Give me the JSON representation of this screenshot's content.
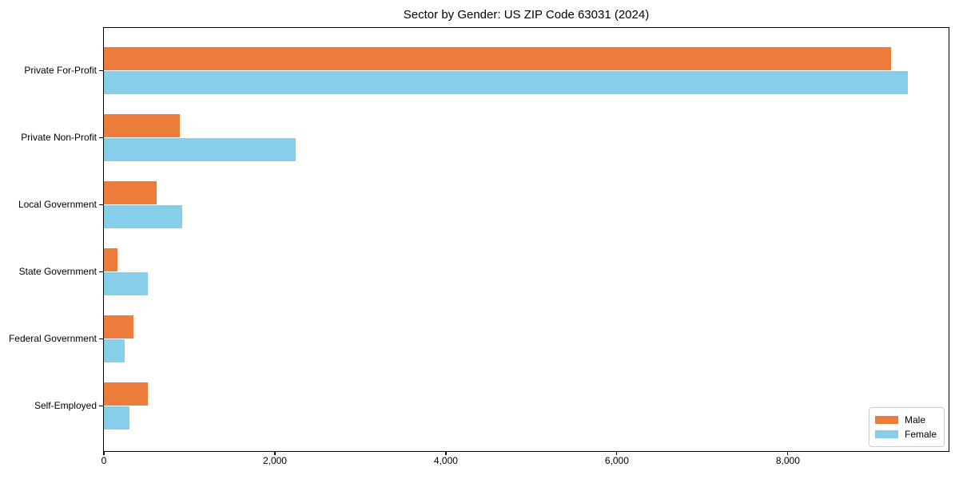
{
  "chart_data": {
    "type": "bar",
    "orientation": "horizontal",
    "title": "Sector by Gender: US ZIP Code 63031 (2024)",
    "categories": [
      "Private For-Profit",
      "Private Non-Profit",
      "Local Government",
      "State Government",
      "Federal Government",
      "Self-Employed"
    ],
    "series": [
      {
        "name": "Male",
        "color": "#EC7C3B",
        "values": [
          9205,
          890,
          615,
          155,
          350,
          510
        ]
      },
      {
        "name": "Female",
        "color": "#87CEEB",
        "values": [
          9400,
          2240,
          920,
          510,
          245,
          295
        ]
      }
    ],
    "xlabel": "",
    "ylabel": "",
    "xlim": [
      0,
      9880
    ],
    "x_ticks": [
      0,
      2000,
      4000,
      6000,
      8000
    ],
    "x_tick_labels": [
      "0",
      "2,000",
      "4,000",
      "6,000",
      "8,000"
    ],
    "grid": false,
    "legend_position": "lower right",
    "legend_entries": [
      "Male",
      "Female"
    ]
  }
}
